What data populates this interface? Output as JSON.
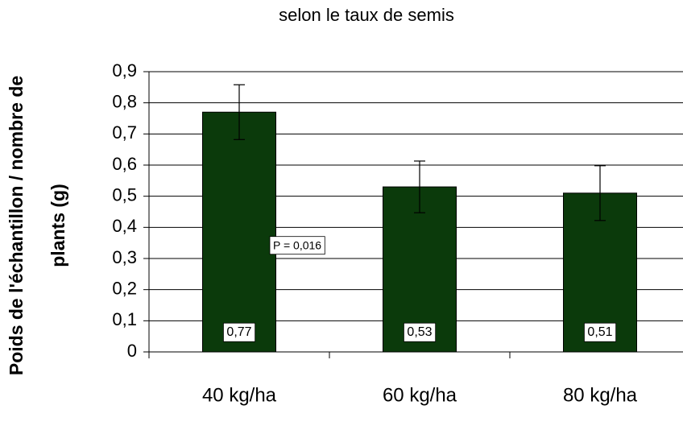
{
  "chart_data": {
    "type": "bar",
    "title": "selon le taux de semis",
    "y_label": [
      "Poids de l'échantillon / nombre de",
      "plants (g)"
    ],
    "categories": [
      "40 kg/ha",
      "60 kg/ha",
      "80 kg/ha"
    ],
    "values": [
      0.77,
      0.53,
      0.51
    ],
    "value_labels": [
      "0,77",
      "0,53",
      "0,51"
    ],
    "errors": [
      0.088,
      0.083,
      0.088
    ],
    "color": "#0b3a0b",
    "annotation": "P = 0,016",
    "ylim": [
      0,
      0.9
    ],
    "yticks": [
      0,
      {
        "value": 0.1,
        "label": "0,1"
      },
      {
        "value": 0.2,
        "label": "0,2"
      },
      {
        "value": 0.3,
        "label": "0,3"
      },
      {
        "value": 0.4,
        "label": "0,4"
      },
      {
        "value": 0.5,
        "label": "0,5"
      },
      {
        "value": 0.6,
        "label": "0,6"
      },
      {
        "value": 0.7,
        "label": "0,7"
      },
      {
        "value": 0.8,
        "label": "0,8"
      },
      {
        "value": 0.9,
        "label": "0,9"
      }
    ],
    "grid": true
  }
}
